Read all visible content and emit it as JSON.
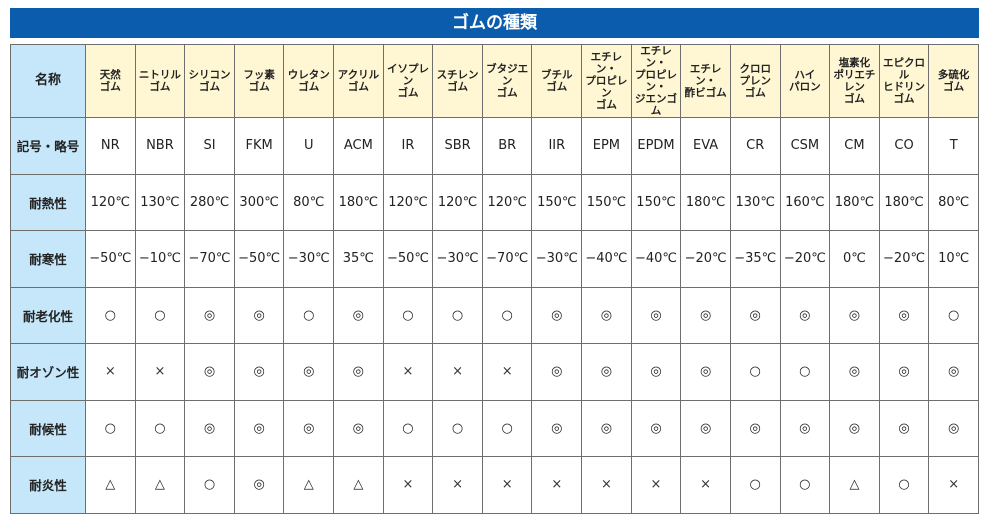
{
  "title": "ゴムの種類",
  "columns_label": "名称",
  "columns": [
    "天然\nゴム",
    "ニトリル\nゴム",
    "シリコン\nゴム",
    "フッ素\nゴム",
    "ウレタン\nゴム",
    "アクリル\nゴム",
    "イソプレン\nゴム",
    "スチレン\nゴム",
    "ブタジエン\nゴム",
    "ブチル\nゴム",
    "エチレン・\nプロピレン\nゴム",
    "エチレン・\nプロピレン・\nジエンゴム",
    "エチレン・\n酢ビゴム",
    "クロロ\nプレン\nゴム",
    "ハイ\nパロン",
    "塩素化\nポリエチレン\nゴム",
    "エピクロル\nヒドリン\nゴム",
    "多硫化\nゴム"
  ],
  "rows": [
    {
      "label": "記号・略号",
      "values": [
        "NR",
        "NBR",
        "SI",
        "FKM",
        "U",
        "ACM",
        "IR",
        "SBR",
        "BR",
        "IIR",
        "EPM",
        "EPDM",
        "EVA",
        "CR",
        "CSM",
        "CM",
        "CO",
        "T"
      ]
    },
    {
      "label": "耐熱性",
      "values": [
        "120℃",
        "130℃",
        "280℃",
        "300℃",
        "80℃",
        "180℃",
        "120℃",
        "120℃",
        "120℃",
        "150℃",
        "150℃",
        "150℃",
        "180℃",
        "130℃",
        "160℃",
        "180℃",
        "180℃",
        "80℃"
      ]
    },
    {
      "label": "耐寒性",
      "values": [
        "−50℃",
        "−10℃",
        "−70℃",
        "−50℃",
        "−30℃",
        "35℃",
        "−50℃",
        "−30℃",
        "−70℃",
        "−30℃",
        "−40℃",
        "−40℃",
        "−20℃",
        "−35℃",
        "−20℃",
        "0℃",
        "−20℃",
        "10℃"
      ]
    },
    {
      "label": "耐老化性",
      "values": [
        "○",
        "○",
        "◎",
        "◎",
        "○",
        "◎",
        "○",
        "○",
        "○",
        "◎",
        "◎",
        "◎",
        "◎",
        "◎",
        "◎",
        "◎",
        "◎",
        "○"
      ]
    },
    {
      "label": "耐オゾン性",
      "values": [
        "×",
        "×",
        "◎",
        "◎",
        "◎",
        "◎",
        "×",
        "×",
        "×",
        "◎",
        "◎",
        "◎",
        "◎",
        "○",
        "○",
        "◎",
        "◎",
        "◎"
      ]
    },
    {
      "label": "耐候性",
      "values": [
        "○",
        "○",
        "◎",
        "◎",
        "◎",
        "◎",
        "○",
        "○",
        "○",
        "◎",
        "◎",
        "◎",
        "◎",
        "◎",
        "◎",
        "◎",
        "◎",
        "◎"
      ]
    },
    {
      "label": "耐炎性",
      "values": [
        "△",
        "△",
        "○",
        "◎",
        "△",
        "△",
        "×",
        "×",
        "×",
        "×",
        "×",
        "×",
        "×",
        "○",
        "○",
        "△",
        "○",
        "×"
      ]
    }
  ],
  "colors": {
    "title_bar": "#0b5cad",
    "label_column": "#c6e7f9",
    "header_row": "#fff7d3"
  }
}
